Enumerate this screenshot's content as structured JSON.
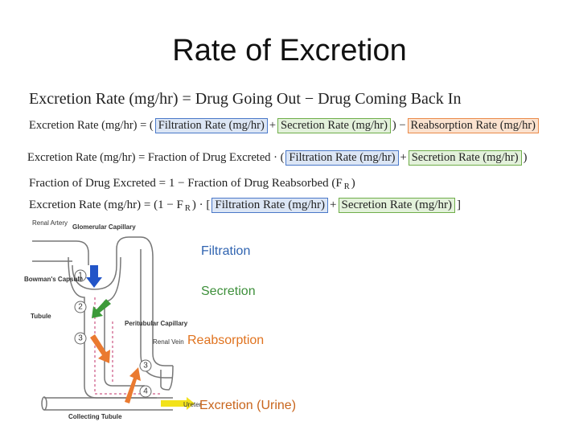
{
  "title": "Rate of Excretion",
  "equations": [
    {
      "segments": [
        {
          "text": "Excretion Rate (mg/hr) = Drug Going Out − Drug Coming Back In"
        }
      ]
    },
    {
      "segments": [
        {
          "text": "Excretion Rate (mg/hr) = ("
        },
        {
          "text": "Filtration Rate (mg/hr)",
          "fill": "#dce6f5",
          "stroke": "#4a78c8"
        },
        {
          "text": "+"
        },
        {
          "text": "Secretion Rate (mg/hr)",
          "fill": "#e3f1db",
          "stroke": "#6fae4a"
        },
        {
          "text": ") −"
        },
        {
          "text": "Reabsorption Rate (mg/hr)",
          "fill": "#fbe2cf",
          "stroke": "#ea8a4a"
        }
      ]
    },
    {
      "segments": [
        {
          "text": "Excretion Rate (mg/hr) = Fraction of Drug Excreted · ("
        },
        {
          "text": "Filtration Rate (mg/hr)",
          "fill": "#dce6f5",
          "stroke": "#4a78c8"
        },
        {
          "text": "+"
        },
        {
          "text": "Secretion Rate (mg/hr)",
          "fill": "#e3f1db",
          "stroke": "#6fae4a"
        },
        {
          "text": ")"
        }
      ]
    },
    {
      "segments": [
        {
          "text": "Fraction of Drug Excreted = 1 − Fraction of Drug Reabsorbed (F"
        },
        {
          "text": "R",
          "sub": true
        },
        {
          "text": ")"
        }
      ]
    },
    {
      "segments": [
        {
          "text": "Excretion Rate (mg/hr) = (1 − F"
        },
        {
          "text": "R",
          "sub": true
        },
        {
          "text": ") · ["
        },
        {
          "text": "Filtration Rate (mg/hr)",
          "fill": "#dce6f5",
          "stroke": "#4a78c8"
        },
        {
          "text": "+"
        },
        {
          "text": "Secretion Rate (mg/hr)",
          "fill": "#e3f1db",
          "stroke": "#6fae4a"
        },
        {
          "text": "]"
        }
      ]
    }
  ],
  "diagram": {
    "labels": [
      "Renal Artery",
      "Glomerular Capillary",
      "Bowman's Capsule",
      "Tubule",
      "Peritubular Capillary",
      "Renal Vein",
      "Collecting Tubule",
      "Ureter"
    ],
    "steps": [
      "1",
      "2",
      "3",
      "4"
    ]
  },
  "legend": [
    {
      "text": "Filtration",
      "color": "#2f63b0"
    },
    {
      "text": "Secretion",
      "color": "#3d8f3a"
    },
    {
      "text": "Reabsorption",
      "color": "#e0731f"
    },
    {
      "text": "Excretion (Urine)",
      "color": "#c8651c"
    }
  ]
}
